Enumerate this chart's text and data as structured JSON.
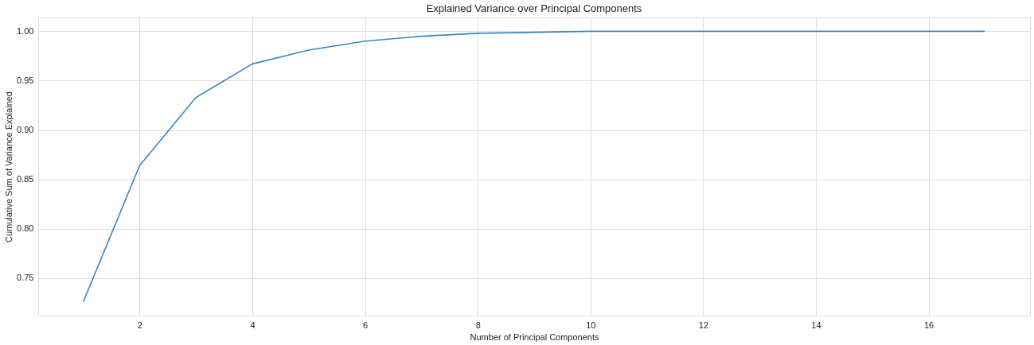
{
  "chart_data": {
    "type": "line",
    "title": "Explained Variance over Principal Components",
    "xlabel": "Number of Principal Components",
    "ylabel": "Cumulative Sum of Variance Explained",
    "x": [
      1,
      2,
      3,
      4,
      5,
      6,
      7,
      8,
      9,
      10,
      11,
      12,
      13,
      14,
      15,
      16,
      17
    ],
    "series": [
      {
        "color": "#3b87bf",
        "values": [
          0.726,
          0.864,
          0.933,
          0.967,
          0.981,
          0.99,
          0.995,
          0.998,
          0.999,
          1.0,
          1.0,
          1.0,
          1.0,
          1.0,
          1.0,
          1.0,
          1.0
        ]
      }
    ],
    "xlim": [
      0.2,
      17.8
    ],
    "ylim": [
      0.712,
      1.014
    ],
    "xticks": [
      2,
      4,
      6,
      8,
      10,
      12,
      14,
      16
    ],
    "yticks": [
      0.75,
      {
        "value": 0.8,
        "label": "0.80"
      },
      0.85,
      {
        "value": 0.9,
        "label": "0.90"
      },
      0.95,
      {
        "value": 1.0,
        "label": "1.00"
      }
    ],
    "grid": true,
    "marker": "none",
    "line_style": "solid"
  }
}
